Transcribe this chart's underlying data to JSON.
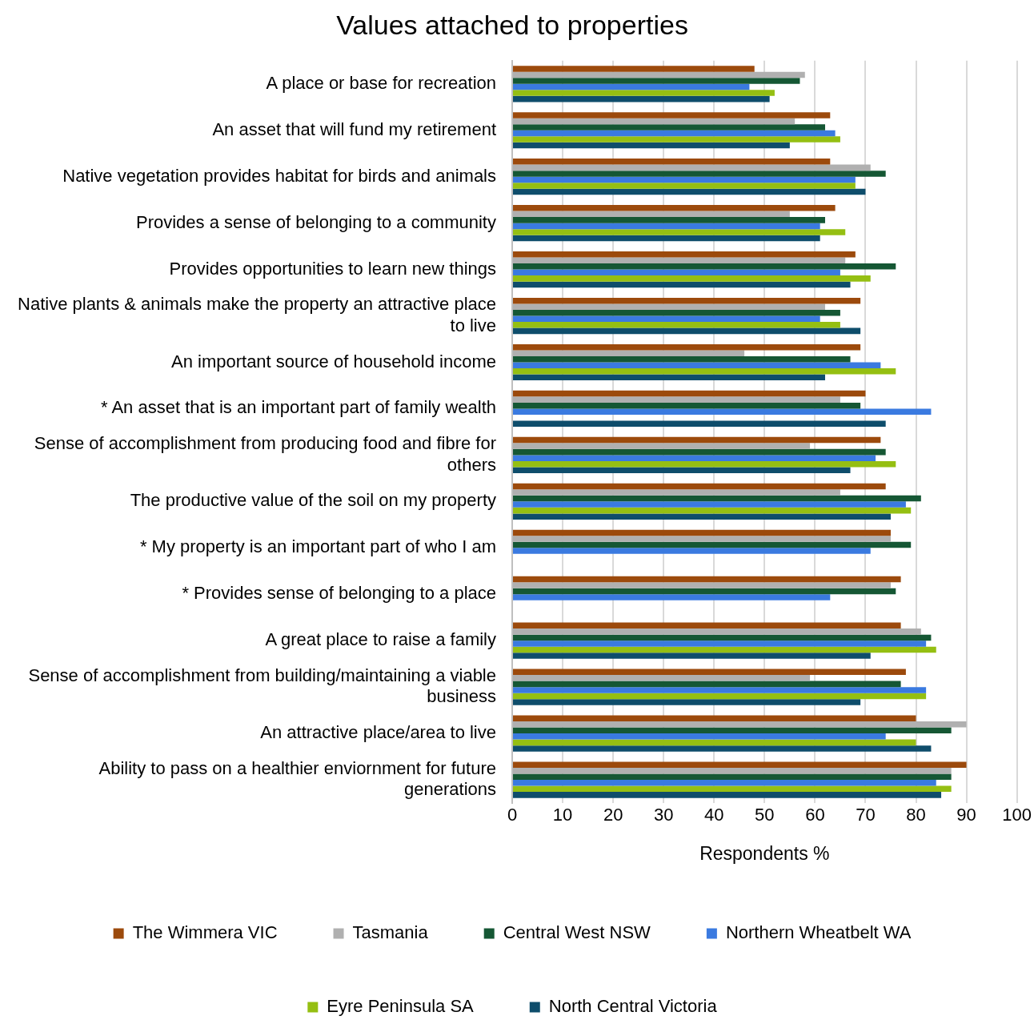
{
  "chart_data": {
    "type": "bar",
    "orientation": "horizontal",
    "title": "Values attached to properties",
    "xlabel": "Respondents %",
    "categories": [
      "A place or base for recreation",
      "An asset that will fund my retirement",
      "Native vegetation provides habitat for birds and animals",
      "Provides a sense of belonging to a community",
      "Provides opportunities to learn new things",
      "Native plants & animals make the property an attractive place to live",
      "An important source of household income",
      "* An asset that is an important part of family wealth",
      "Sense of accomplishment from producing food and fibre for others",
      "The productive value of the soil on my property",
      "* My property is an important part of who I am",
      "* Provides sense of belonging to a place",
      "A great place to raise a family",
      "Sense of accomplishment from building/maintaining a viable business",
      "An attractive place/area to live",
      "Ability to pass on a healthier enviornment for future generations"
    ],
    "series": [
      {
        "name": "The Wimmera VIC",
        "color": "#9c4a0c",
        "values": [
          48,
          63,
          63,
          64,
          68,
          69,
          69,
          70,
          73,
          74,
          75,
          77,
          77,
          78,
          80,
          90
        ]
      },
      {
        "name": "Tasmania",
        "color": "#b0b0b0",
        "values": [
          58,
          56,
          71,
          55,
          66,
          62,
          46,
          65,
          59,
          65,
          75,
          75,
          81,
          59,
          90,
          87
        ]
      },
      {
        "name": "Central West NSW",
        "color": "#155734",
        "values": [
          57,
          62,
          74,
          62,
          76,
          65,
          67,
          69,
          74,
          81,
          79,
          76,
          83,
          77,
          87,
          87
        ]
      },
      {
        "name": "Northern Wheatbelt WA",
        "color": "#3a7ae0",
        "values": [
          47,
          64,
          68,
          61,
          65,
          61,
          73,
          83,
          72,
          78,
          71,
          63,
          82,
          82,
          74,
          84
        ]
      },
      {
        "name": "Eyre Peninsula SA",
        "color": "#95bf12",
        "values": [
          52,
          65,
          68,
          66,
          71,
          65,
          76,
          null,
          76,
          79,
          null,
          null,
          84,
          82,
          80,
          87
        ]
      },
      {
        "name": "North Central Victoria",
        "color": "#0e4d6b",
        "values": [
          51,
          55,
          70,
          61,
          67,
          69,
          62,
          74,
          67,
          75,
          null,
          null,
          71,
          69,
          83,
          85
        ]
      }
    ],
    "xlim": [
      0,
      100
    ],
    "xticks": [
      0,
      10,
      20,
      30,
      40,
      50,
      60,
      70,
      80,
      90,
      100
    ],
    "grid": "x",
    "legend": "bottom"
  }
}
